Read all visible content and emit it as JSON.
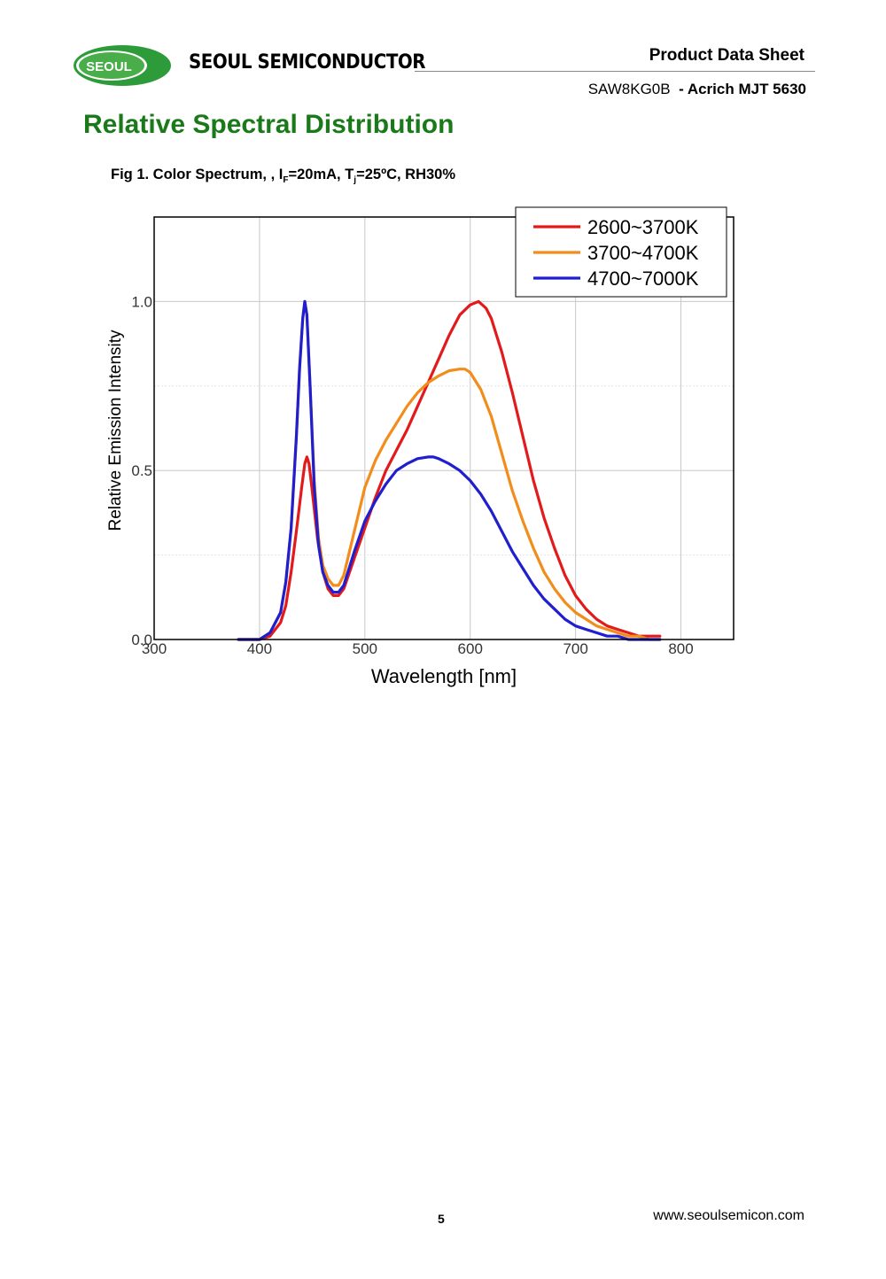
{
  "header": {
    "logo_text": "SEOUL",
    "brand": "SEOUL SEMICONDUCTOR",
    "doc_type": "Product Data Sheet",
    "part_number": "SAW8KG0B",
    "series": "- Acrich MJT 5630"
  },
  "section_title": "Relative Spectral Distribution",
  "figure": {
    "caption_prefix": "Fig 1. Color Spectrum, , I",
    "caption_sub1": "F",
    "caption_mid": "=20mA, T",
    "caption_sub2": "j",
    "caption_suffix": "=25ºC, RH30%"
  },
  "chart_data": {
    "type": "line",
    "xlabel": "Wavelength [nm]",
    "ylabel": "Relative Emission Intensity",
    "xlim": [
      300,
      850
    ],
    "ylim": [
      0,
      1.25
    ],
    "xticks": [
      300,
      400,
      500,
      600,
      700,
      800
    ],
    "xtick_labels": [
      "300",
      "400",
      "500",
      "600",
      "700",
      "800"
    ],
    "yticks": [
      0,
      0.5,
      1.0
    ],
    "ytick_labels": [
      "0.0",
      "0.5",
      "1.0"
    ],
    "grid": true,
    "legend_position": "top-right",
    "series": [
      {
        "name": "2600~3700K",
        "color": "#e31a1c",
        "x": [
          380,
          400,
          410,
          420,
          425,
          430,
          435,
          440,
          443,
          445,
          447,
          450,
          455,
          460,
          465,
          470,
          475,
          480,
          490,
          500,
          510,
          520,
          530,
          540,
          550,
          560,
          570,
          580,
          590,
          600,
          608,
          615,
          620,
          630,
          640,
          650,
          660,
          670,
          680,
          690,
          700,
          710,
          720,
          730,
          740,
          750,
          760,
          770,
          780
        ],
        "y": [
          0.0,
          0.0,
          0.01,
          0.05,
          0.1,
          0.2,
          0.32,
          0.45,
          0.52,
          0.54,
          0.52,
          0.44,
          0.3,
          0.2,
          0.15,
          0.13,
          0.13,
          0.15,
          0.24,
          0.33,
          0.42,
          0.5,
          0.56,
          0.62,
          0.69,
          0.76,
          0.83,
          0.9,
          0.96,
          0.99,
          1.0,
          0.98,
          0.95,
          0.85,
          0.73,
          0.6,
          0.47,
          0.36,
          0.27,
          0.19,
          0.13,
          0.09,
          0.06,
          0.04,
          0.03,
          0.02,
          0.01,
          0.01,
          0.01
        ]
      },
      {
        "name": "3700~4700K",
        "color": "#f28c1a",
        "x": [
          380,
          400,
          410,
          420,
          425,
          430,
          435,
          438,
          441,
          443,
          445,
          448,
          452,
          456,
          460,
          465,
          470,
          475,
          480,
          490,
          500,
          510,
          520,
          530,
          540,
          550,
          560,
          570,
          580,
          590,
          595,
          600,
          610,
          620,
          630,
          640,
          650,
          660,
          670,
          680,
          690,
          700,
          710,
          720,
          730,
          740,
          750,
          760,
          770,
          780
        ],
        "y": [
          0.0,
          0.0,
          0.02,
          0.08,
          0.17,
          0.33,
          0.6,
          0.8,
          0.95,
          1.0,
          0.96,
          0.75,
          0.47,
          0.3,
          0.22,
          0.18,
          0.16,
          0.16,
          0.19,
          0.32,
          0.45,
          0.53,
          0.59,
          0.64,
          0.69,
          0.73,
          0.76,
          0.78,
          0.795,
          0.8,
          0.8,
          0.79,
          0.74,
          0.66,
          0.55,
          0.44,
          0.35,
          0.27,
          0.2,
          0.15,
          0.11,
          0.08,
          0.06,
          0.04,
          0.03,
          0.02,
          0.01,
          0.01,
          0.0,
          0.0
        ]
      },
      {
        "name": "4700~7000K",
        "color": "#1f1fcf",
        "x": [
          380,
          400,
          410,
          420,
          425,
          430,
          435,
          438,
          441,
          443,
          445,
          448,
          452,
          456,
          460,
          465,
          470,
          475,
          480,
          490,
          500,
          510,
          520,
          530,
          540,
          550,
          560,
          565,
          570,
          580,
          590,
          600,
          610,
          620,
          630,
          640,
          650,
          660,
          670,
          680,
          690,
          700,
          710,
          720,
          730,
          740,
          750,
          760,
          770,
          780
        ],
        "y": [
          0.0,
          0.0,
          0.02,
          0.08,
          0.17,
          0.33,
          0.6,
          0.8,
          0.95,
          1.0,
          0.96,
          0.75,
          0.45,
          0.28,
          0.2,
          0.16,
          0.14,
          0.14,
          0.16,
          0.26,
          0.35,
          0.41,
          0.46,
          0.5,
          0.52,
          0.535,
          0.54,
          0.54,
          0.535,
          0.52,
          0.5,
          0.47,
          0.43,
          0.38,
          0.32,
          0.26,
          0.21,
          0.16,
          0.12,
          0.09,
          0.06,
          0.04,
          0.03,
          0.02,
          0.01,
          0.01,
          0.0,
          0.0,
          0.0,
          0.0
        ]
      }
    ]
  },
  "footer": {
    "page_number": "5",
    "website": "www.seoulsemicon.com"
  }
}
